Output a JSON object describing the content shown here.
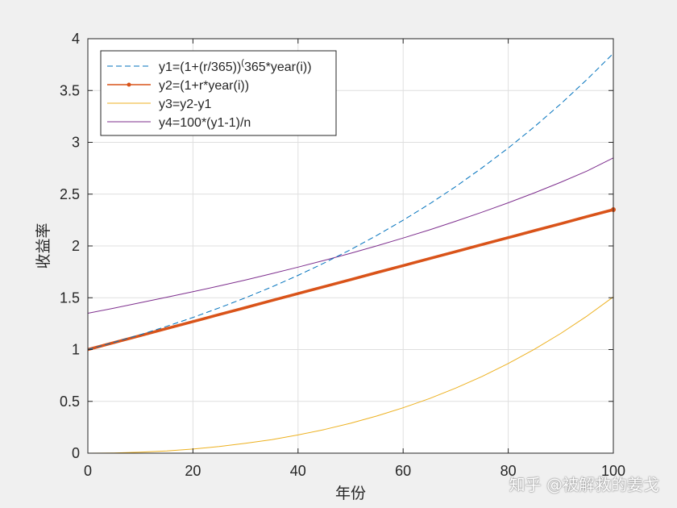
{
  "chart_data": {
    "type": "line",
    "title": "",
    "xlabel": "年份",
    "ylabel": "收益率",
    "xlim": [
      0,
      100
    ],
    "ylim": [
      0,
      4
    ],
    "xticks": [
      0,
      20,
      40,
      60,
      80,
      100
    ],
    "yticks": [
      0,
      0.5,
      1,
      1.5,
      2,
      2.5,
      3,
      3.5,
      4
    ],
    "xtick_labels": [
      "0",
      "20",
      "40",
      "60",
      "80",
      "100"
    ],
    "ytick_labels": [
      "0",
      "0.5",
      "1",
      "1.5",
      "2",
      "2.5",
      "3",
      "3.5",
      "4"
    ],
    "grid": true,
    "legend_position": "top-left",
    "x": [
      0,
      5,
      10,
      15,
      20,
      25,
      30,
      35,
      40,
      45,
      50,
      55,
      60,
      65,
      70,
      75,
      80,
      85,
      90,
      95,
      100
    ],
    "series": [
      {
        "name": "y1=(1+(r/365))^(365*year(i))",
        "legend_prefix": "y1=(1+(r/365))",
        "legend_superscript": "(",
        "legend_suffix": "365*year(i))",
        "color": "#0072BD",
        "style": "dashed",
        "values": [
          1.0,
          1.07,
          1.144,
          1.224,
          1.31,
          1.402,
          1.5,
          1.604,
          1.716,
          1.836,
          1.964,
          2.102,
          2.248,
          2.405,
          2.573,
          2.753,
          2.945,
          3.151,
          3.371,
          3.607,
          3.858
        ]
      },
      {
        "name": "y2=(1+r*year(i))",
        "color": "#D95319",
        "style": "solid-marker",
        "values": [
          1.0,
          1.068,
          1.135,
          1.203,
          1.27,
          1.338,
          1.405,
          1.473,
          1.54,
          1.608,
          1.675,
          1.743,
          1.81,
          1.878,
          1.945,
          2.013,
          2.08,
          2.148,
          2.215,
          2.283,
          2.35
        ]
      },
      {
        "name": "y3=y2-y1",
        "color": "#EDB120",
        "style": "solid",
        "values": [
          0.0,
          0.002,
          0.009,
          0.021,
          0.04,
          0.064,
          0.095,
          0.131,
          0.176,
          0.228,
          0.289,
          0.359,
          0.438,
          0.527,
          0.628,
          0.74,
          0.865,
          1.003,
          1.156,
          1.324,
          1.508
        ]
      },
      {
        "name": "y4=100*(y1-1)/n",
        "color": "#7E2F8E",
        "style": "solid",
        "values": [
          1.35,
          1.4,
          1.452,
          1.505,
          1.558,
          1.614,
          1.671,
          1.732,
          1.795,
          1.861,
          1.929,
          2.001,
          2.076,
          2.155,
          2.238,
          2.325,
          2.416,
          2.513,
          2.615,
          2.723,
          2.85
        ]
      }
    ]
  },
  "watermark": "知乎 @被解救的姜戈"
}
